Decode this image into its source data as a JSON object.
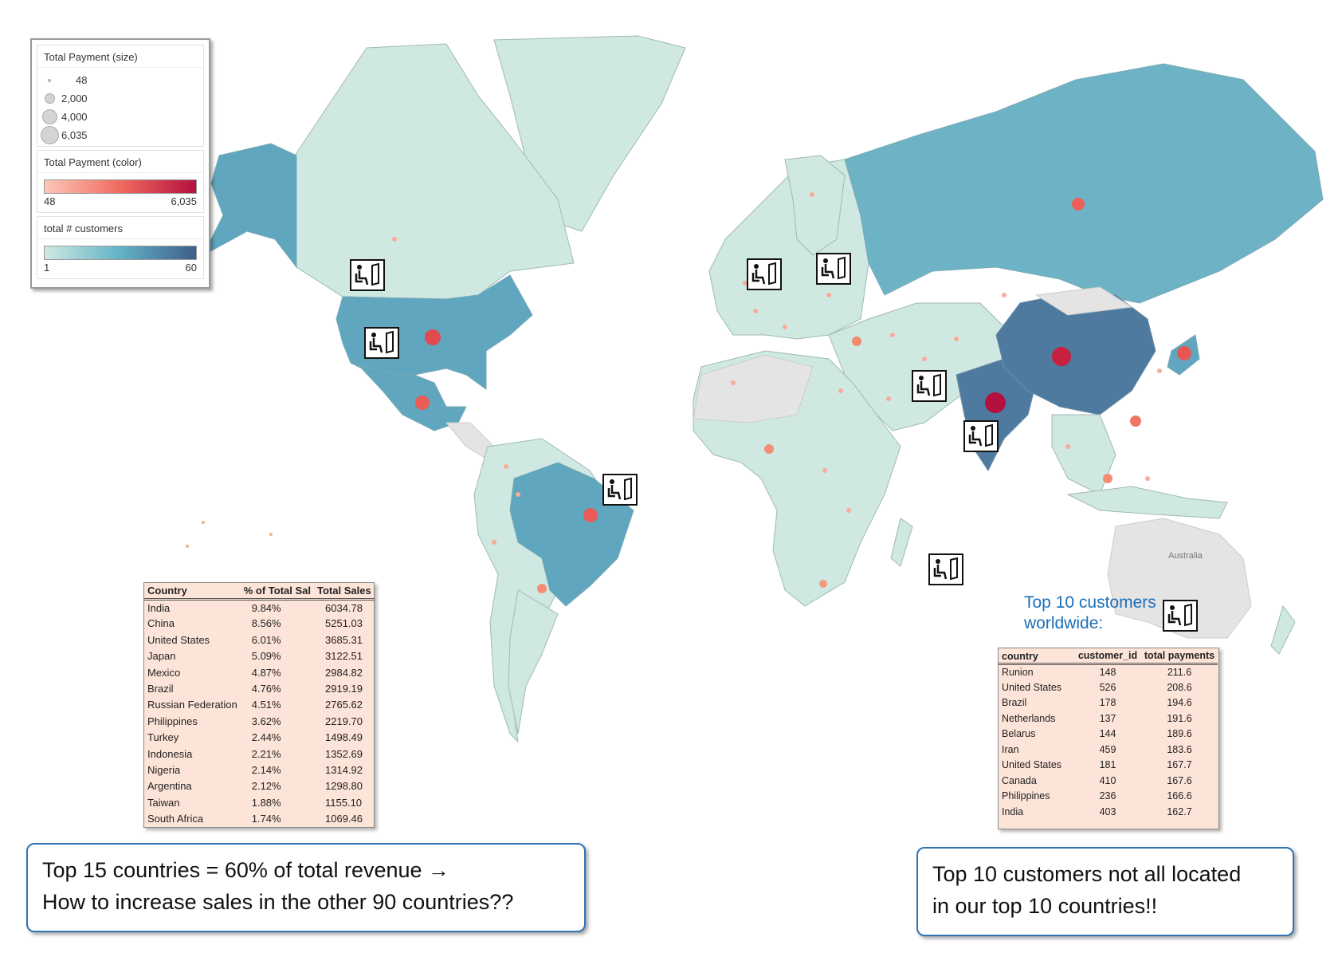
{
  "legend": {
    "size_title": "Total Payment (size)",
    "size_items": [
      {
        "label": "48",
        "value": 48
      },
      {
        "label": "2,000",
        "value": 2000
      },
      {
        "label": "4,000",
        "value": 4000
      },
      {
        "label": "6,035",
        "value": 6035
      }
    ],
    "color_title": "Total Payment (color)",
    "color_min": "48",
    "color_max": "6,035",
    "customers_title": "total # customers",
    "customers_min": "1",
    "customers_max": "60",
    "colors": {
      "pay_low": "#fbc7b8",
      "pay_high": "#b3123e",
      "cust_low": "#cfe9e2",
      "cust_high": "#3e5f8a"
    }
  },
  "map_labels": {
    "australia": "Australia"
  },
  "sales_table": {
    "headers": [
      "Country",
      "% of Total Sal",
      "Total Sales"
    ],
    "rows": [
      [
        "India",
        "9.84%",
        "6034.78"
      ],
      [
        "China",
        "8.56%",
        "5251.03"
      ],
      [
        "United States",
        "6.01%",
        "3685.31"
      ],
      [
        "Japan",
        "5.09%",
        "3122.51"
      ],
      [
        "Mexico",
        "4.87%",
        "2984.82"
      ],
      [
        "Brazil",
        "4.76%",
        "2919.19"
      ],
      [
        "Russian Federation",
        "4.51%",
        "2765.62"
      ],
      [
        "Philippines",
        "3.62%",
        "2219.70"
      ],
      [
        "Turkey",
        "2.44%",
        "1498.49"
      ],
      [
        "Indonesia",
        "2.21%",
        "1352.69"
      ],
      [
        "Nigeria",
        "2.14%",
        "1314.92"
      ],
      [
        "Argentina",
        "2.12%",
        "1298.80"
      ],
      [
        "Taiwan",
        "1.88%",
        "1155.10"
      ],
      [
        "South Africa",
        "1.74%",
        "1069.46"
      ]
    ]
  },
  "top10": {
    "label_line1": "Top 10 customers",
    "label_line2": "worldwide:",
    "headers": [
      "country",
      "customer_id",
      "total payments"
    ],
    "rows": [
      [
        "Runion",
        "148",
        "211.6"
      ],
      [
        "United States",
        "526",
        "208.6"
      ],
      [
        "Brazil",
        "178",
        "194.6"
      ],
      [
        "Netherlands",
        "137",
        "191.6"
      ],
      [
        "Belarus",
        "144",
        "189.6"
      ],
      [
        "Iran",
        "459",
        "183.6"
      ],
      [
        "United States",
        "181",
        "167.7"
      ],
      [
        "Canada",
        "410",
        "167.6"
      ],
      [
        "Philippines",
        "236",
        "166.6"
      ],
      [
        "India",
        "403",
        "162.7"
      ]
    ]
  },
  "callouts": {
    "left_line1": "Top 15 countries = 60% of total revenue →",
    "left_line2": "How to increase sales in the other 90 countries??",
    "right_line1": "Top 10 customers not all located",
    "right_line2": "in our top 10 countries!!"
  }
}
